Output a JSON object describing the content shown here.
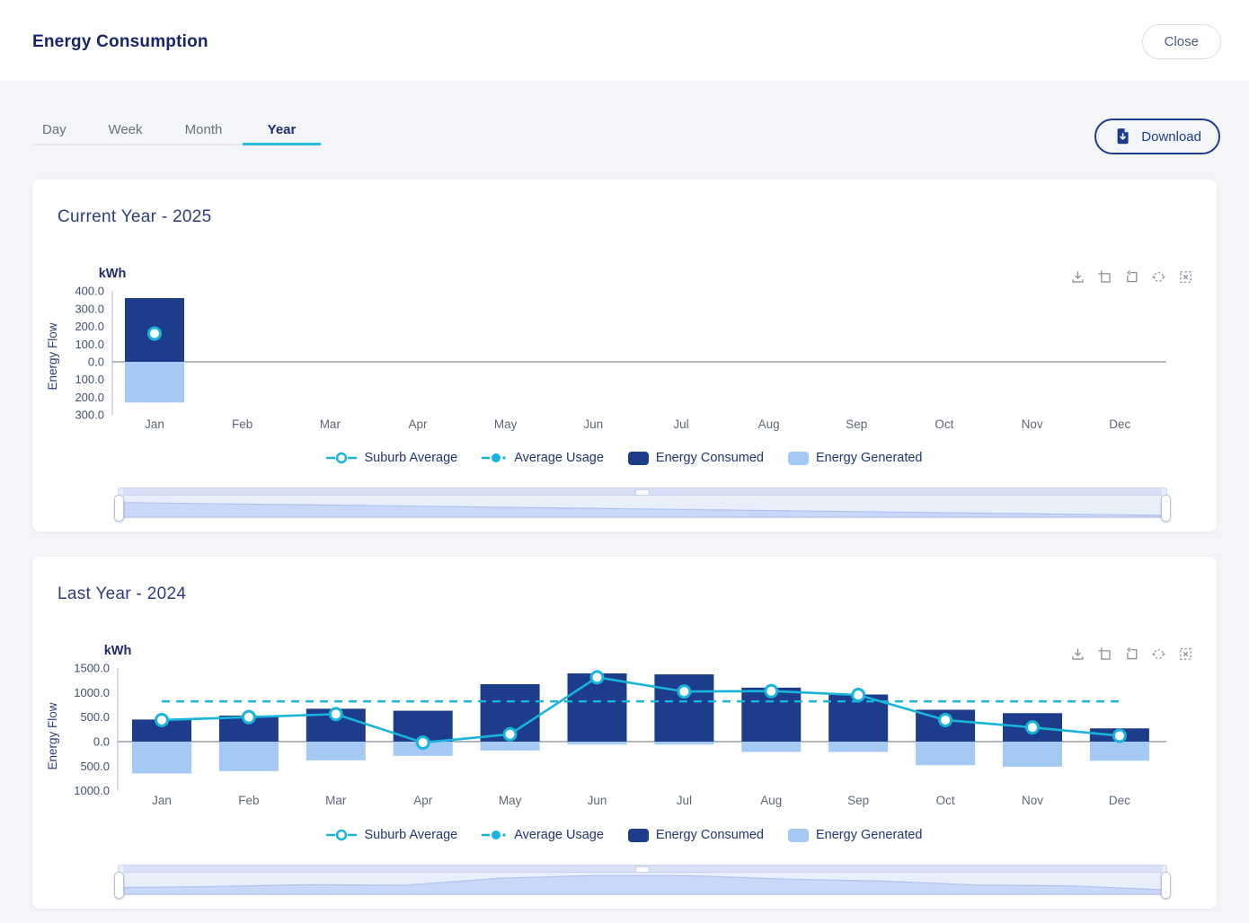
{
  "header": {
    "title": "Energy Consumption",
    "close_label": "Close"
  },
  "tabs": {
    "items": [
      "Day",
      "Week",
      "Month",
      "Year"
    ],
    "active": "Year"
  },
  "toolbar": {
    "download_label": "Download"
  },
  "chart_toolbar_icons": [
    "save-image-icon",
    "zoom-select-icon",
    "zoom-back-icon",
    "pan-icon",
    "zoom-reset-icon"
  ],
  "colors": {
    "navy": "#1d3c8a",
    "light_blue": "#a4c9f3",
    "cyan": "#19b4da",
    "zero_line": "#9aa0a8",
    "axis_line": "#c7ccd4",
    "tick_text": "#42506d",
    "month_text": "#5f6775",
    "axis_title": "#2e3c7e"
  },
  "legend": {
    "items": [
      {
        "label": "Suburb Average",
        "marker": "line-circle-hollow",
        "color": "#19b4da"
      },
      {
        "label": "Average Usage",
        "marker": "line-dashed-circle-filled",
        "color": "#19b4da"
      },
      {
        "label": "Energy Consumed",
        "marker": "box",
        "color": "#1d3c8a"
      },
      {
        "label": "Energy Generated",
        "marker": "box",
        "color": "#a4c9f3"
      }
    ]
  },
  "chart_data": [
    {
      "type": "bar",
      "title": "Current Year - 2025",
      "unit_label": "kWh",
      "ylabel": "Energy Flow",
      "categories": [
        "Jan",
        "Feb",
        "Mar",
        "Apr",
        "May",
        "Jun",
        "Jul",
        "Aug",
        "Sep",
        "Oct",
        "Nov",
        "Dec"
      ],
      "ylim": [
        -300,
        400
      ],
      "ytick_values": [
        400,
        300,
        200,
        100,
        0,
        -100,
        -200,
        -300
      ],
      "ytick_labels": [
        "400.0",
        "300.0",
        "200.0",
        "100.0",
        "0.0",
        "100.0",
        "200.0",
        "300.0"
      ],
      "legend_position": "bottom",
      "grid": false,
      "series": [
        {
          "name": "Energy Consumed",
          "type": "bar",
          "color": "#1d3c8a",
          "values": [
            360,
            null,
            null,
            null,
            null,
            null,
            null,
            null,
            null,
            null,
            null,
            null
          ]
        },
        {
          "name": "Energy Generated",
          "type": "bar",
          "color": "#a4c9f3",
          "values": [
            -230,
            null,
            null,
            null,
            null,
            null,
            null,
            null,
            null,
            null,
            null,
            null
          ]
        },
        {
          "name": "Suburb Average",
          "type": "line",
          "color": "#19b4da",
          "values": [
            160,
            null,
            null,
            null,
            null,
            null,
            null,
            null,
            null,
            null,
            null,
            null
          ]
        },
        {
          "name": "Average Usage",
          "type": "dashed-line",
          "color": "#19b4da",
          "values": [
            null,
            null,
            null,
            null,
            null,
            null,
            null,
            null,
            null,
            null,
            null,
            null
          ]
        }
      ]
    },
    {
      "type": "bar",
      "title": "Last Year - 2024",
      "unit_label": "kWh",
      "ylabel": "Energy Flow",
      "categories": [
        "Jan",
        "Feb",
        "Mar",
        "Apr",
        "May",
        "Jun",
        "Jul",
        "Aug",
        "Sep",
        "Oct",
        "Nov",
        "Dec"
      ],
      "ylim": [
        -1000,
        1500
      ],
      "ytick_values": [
        1500,
        1000,
        500,
        0,
        -500,
        -1000
      ],
      "ytick_labels": [
        "1500.0",
        "1000.0",
        "500.0",
        "0.0",
        "500.0",
        "1000.0"
      ],
      "legend_position": "bottom",
      "grid": false,
      "series": [
        {
          "name": "Energy Consumed",
          "type": "bar",
          "color": "#1d3c8a",
          "values": [
            450,
            530,
            670,
            630,
            1170,
            1390,
            1370,
            1100,
            960,
            650,
            580,
            270
          ]
        },
        {
          "name": "Energy Generated",
          "type": "bar",
          "color": "#a4c9f3",
          "values": [
            -650,
            -600,
            -380,
            -290,
            -180,
            -60,
            -60,
            -210,
            -210,
            -480,
            -510,
            -390
          ]
        },
        {
          "name": "Suburb Average",
          "type": "line",
          "color": "#19b4da",
          "values": [
            440,
            500,
            560,
            -20,
            150,
            1310,
            1020,
            1030,
            950,
            440,
            290,
            120
          ]
        },
        {
          "name": "Average Usage",
          "type": "dashed-line",
          "color": "#19b4da",
          "values": [
            820,
            820,
            820,
            820,
            820,
            820,
            820,
            820,
            820,
            820,
            820,
            820
          ]
        }
      ]
    }
  ]
}
